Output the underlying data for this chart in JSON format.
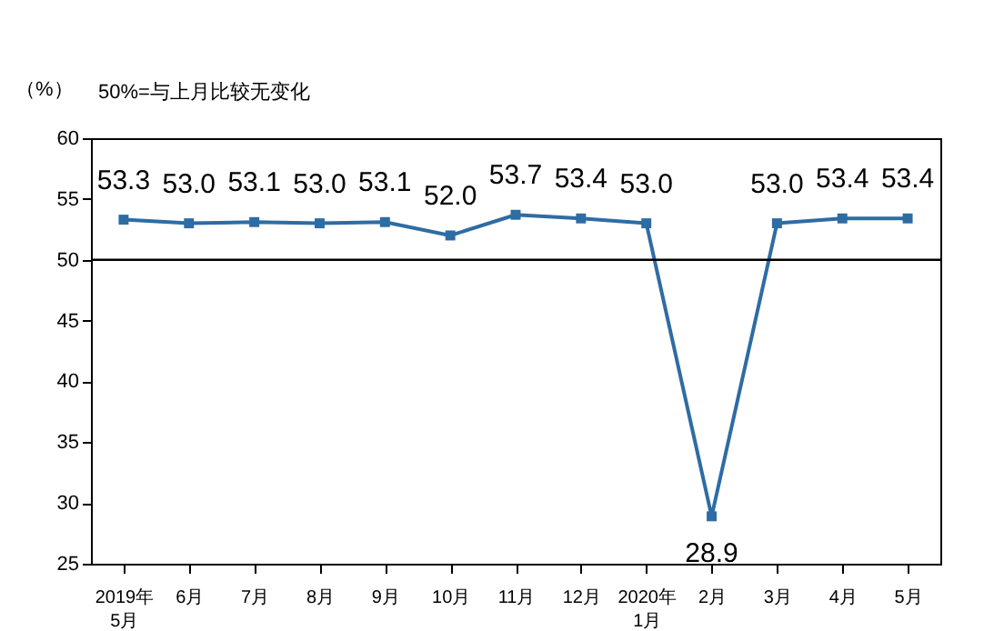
{
  "chart_data": {
    "type": "line",
    "ylabel": "（%）",
    "annotations": [
      "50%=与上月比较无变化"
    ],
    "categories": [
      "2019年\n5月",
      "6月",
      "7月",
      "8月",
      "9月",
      "10月",
      "11月",
      "12月",
      "2020年\n1月",
      "2月",
      "3月",
      "4月",
      "5月"
    ],
    "series": [
      {
        "color": "#2e6ca4",
        "values": [
          53.3,
          53.0,
          53.1,
          53.0,
          53.1,
          52.0,
          53.7,
          53.4,
          53.0,
          28.9,
          53.0,
          53.4,
          53.4
        ],
        "value_labels": [
          "53.3",
          "53.0",
          "53.1",
          "53.0",
          "53.1",
          "52.0",
          "53.7",
          "53.4",
          "53.0",
          "28.9",
          "53.0",
          "53.4",
          "53.4"
        ]
      }
    ],
    "ylim": [
      25,
      60
    ],
    "yticks": [
      25,
      30,
      35,
      40,
      45,
      50,
      55,
      60
    ],
    "ref_lines": [
      {
        "axis": "y",
        "value": 50,
        "color": "#000000"
      }
    ],
    "marker": "square"
  }
}
